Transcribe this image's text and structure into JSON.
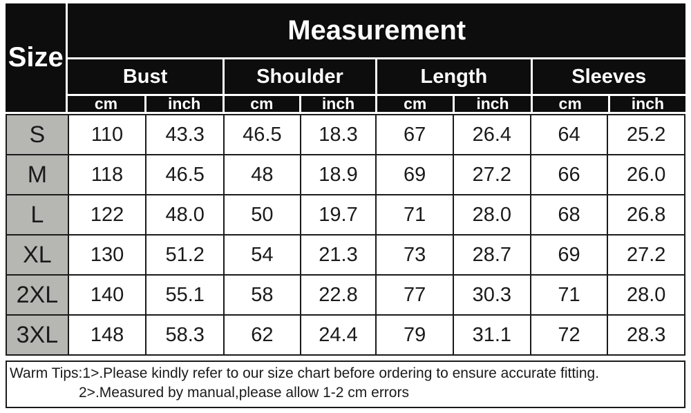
{
  "chart_data": {
    "type": "table",
    "title": "Measurement",
    "corner_label": "Size",
    "groups": [
      "Bust",
      "Shoulder",
      "Length",
      "Sleeves"
    ],
    "unit_labels": [
      "cm",
      "inch",
      "cm",
      "inch",
      "cm",
      "inch",
      "cm",
      "inch"
    ],
    "columns": [
      "Size",
      "Bust cm",
      "Bust inch",
      "Shoulder cm",
      "Shoulder inch",
      "Length cm",
      "Length inch",
      "Sleeves cm",
      "Sleeves inch"
    ],
    "rows": [
      {
        "size": "S",
        "values": [
          "110",
          "43.3",
          "46.5",
          "18.3",
          "67",
          "26.4",
          "64",
          "25.2"
        ]
      },
      {
        "size": "M",
        "values": [
          "118",
          "46.5",
          "48",
          "18.9",
          "69",
          "27.2",
          "66",
          "26.0"
        ]
      },
      {
        "size": "L",
        "values": [
          "122",
          "48.0",
          "50",
          "19.7",
          "71",
          "28.0",
          "68",
          "26.8"
        ]
      },
      {
        "size": "XL",
        "values": [
          "130",
          "51.2",
          "54",
          "21.3",
          "73",
          "28.7",
          "69",
          "27.2"
        ]
      },
      {
        "size": "2XL",
        "values": [
          "140",
          "55.1",
          "58",
          "22.8",
          "77",
          "30.3",
          "71",
          "28.0"
        ]
      },
      {
        "size": "3XL",
        "values": [
          "148",
          "58.3",
          "62",
          "24.4",
          "79",
          "31.1",
          "72",
          "28.3"
        ]
      }
    ]
  },
  "tips": {
    "line1": "Warm Tips:1>.Please kindly refer to our size chart before ordering to ensure accurate fitting.",
    "line2": "2>.Measured by manual,please allow 1-2 cm errors"
  },
  "colors": {
    "header_bg": "#0d0d0d",
    "header_text": "#ffffff",
    "size_cell_bg": "#b6b6b3",
    "cell_bg": "#ffffff",
    "grid_line": "#1a1a1a",
    "body_text": "#1a1a1a"
  }
}
